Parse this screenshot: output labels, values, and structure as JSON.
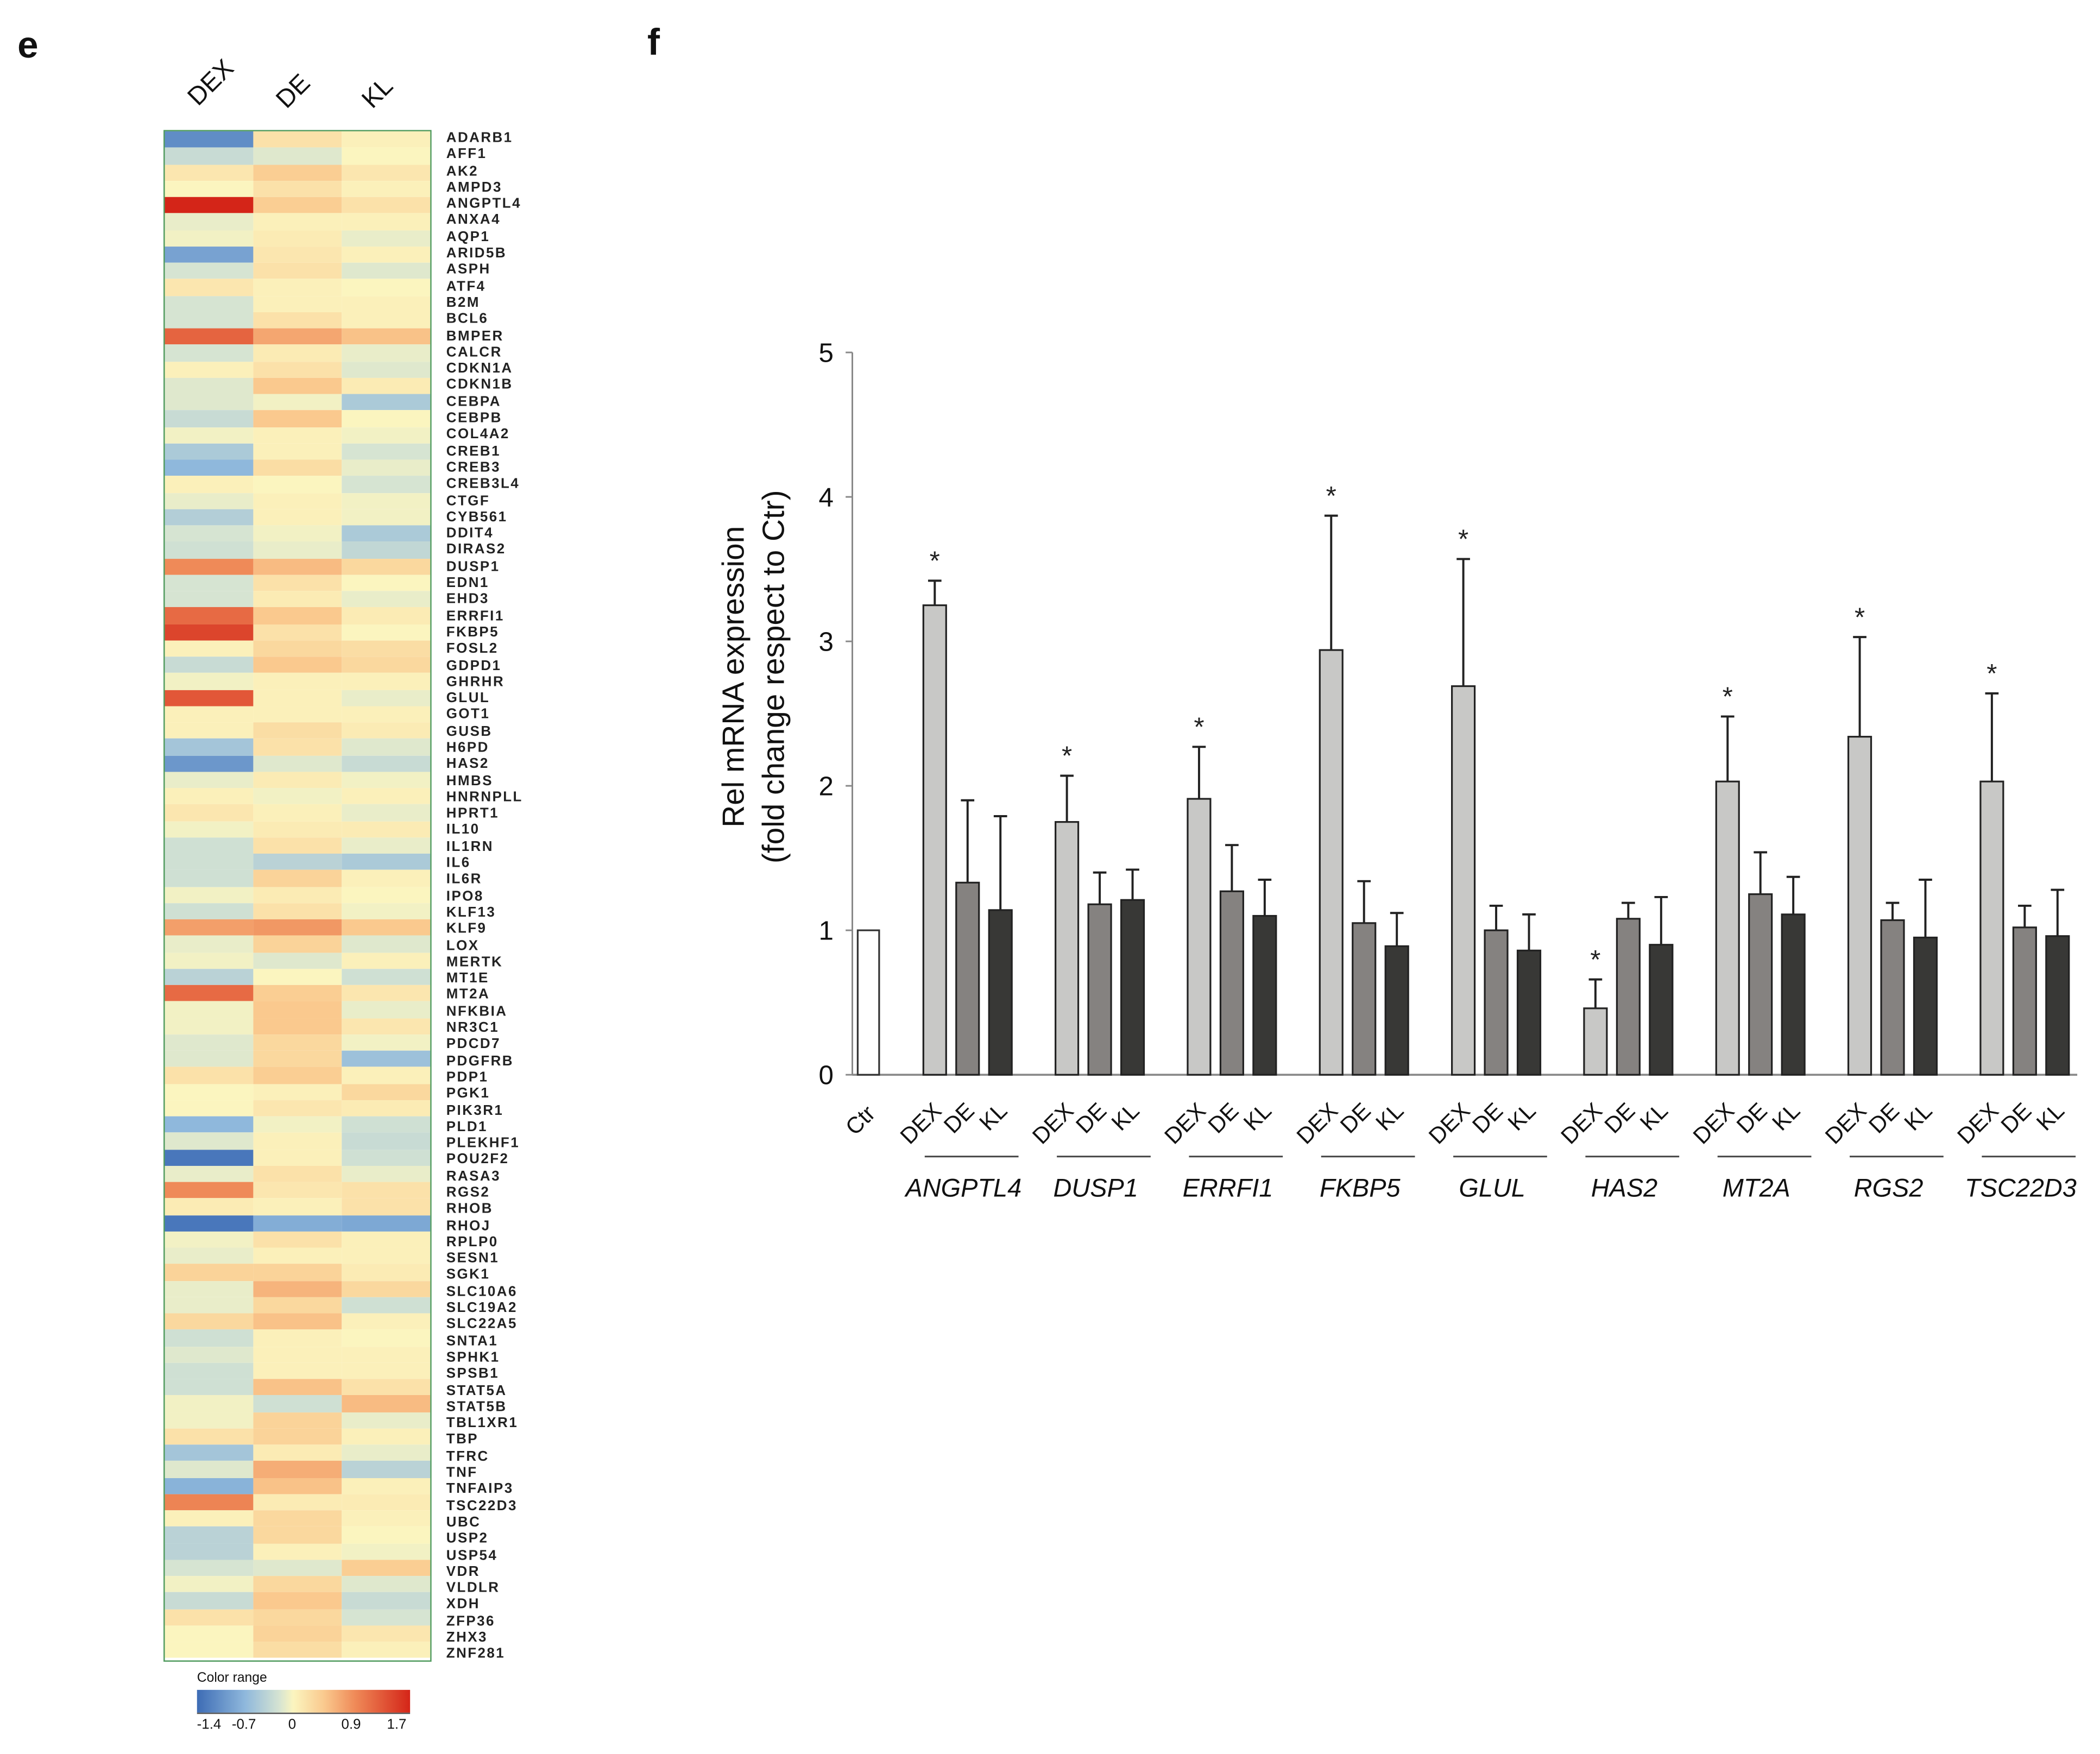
{
  "panels": {
    "left": "e",
    "right": "f"
  },
  "heatmap": {
    "columns": [
      "DEX",
      "DE",
      "KL"
    ],
    "genes": [
      "ADARB1",
      "AFF1",
      "AK2",
      "AMPD3",
      "ANGPTL4",
      "ANXA4",
      "AQP1",
      "ARID5B",
      "ASPH",
      "ATF4",
      "B2M",
      "BCL6",
      "BMPER",
      "CALCR",
      "CDKN1A",
      "CDKN1B",
      "CEBPA",
      "CEBPB",
      "COL4A2",
      "CREB1",
      "CREB3",
      "CREB3L4",
      "CTGF",
      "CYB561",
      "DDIT4",
      "DIRAS2",
      "DUSP1",
      "EDN1",
      "EHD3",
      "ERRFI1",
      "FKBP5",
      "FOSL2",
      "GDPD1",
      "GHRHR",
      "GLUL",
      "GOT1",
      "GUSB",
      "H6PD",
      "HAS2",
      "HMBS",
      "HNRNPLL",
      "HPRT1",
      "IL10",
      "IL1RN",
      "IL6",
      "IL6R",
      "IPO8",
      "KLF13",
      "KLF9",
      "LOX",
      "MERTK",
      "MT1E",
      "MT2A",
      "NFKBIA",
      "NR3C1",
      "PDCD7",
      "PDGFRB",
      "PDP1",
      "PGK1",
      "PIK3R1",
      "PLD1",
      "PLEKHF1",
      "POU2F2",
      "RASA3",
      "RGS2",
      "RHOB",
      "RHOJ",
      "RPLP0",
      "SESN1",
      "SGK1",
      "SLC10A6",
      "SLC19A2",
      "SLC22A5",
      "SNTA1",
      "SPHK1",
      "SPSB1",
      "STAT5A",
      "STAT5B",
      "TBL1XR1",
      "TBP",
      "TFRC",
      "TNF",
      "TNFAIP3",
      "TSC22D3",
      "UBC",
      "USP2",
      "USP54",
      "VDR",
      "VLDLR",
      "XDH",
      "ZFP36",
      "ZHX3",
      "ZNF281"
    ],
    "values": [
      [
        -1.1,
        0.2,
        0.05
      ],
      [
        -0.3,
        -0.15,
        0
      ],
      [
        0.15,
        0.4,
        0.15
      ],
      [
        0,
        0.2,
        0.05
      ],
      [
        1.7,
        0.4,
        0.2
      ],
      [
        -0.1,
        0.05,
        0.05
      ],
      [
        -0.05,
        0.1,
        -0.1
      ],
      [
        -0.9,
        0.15,
        0.05
      ],
      [
        -0.2,
        0.2,
        -0.15
      ],
      [
        0.15,
        0.05,
        0
      ],
      [
        -0.2,
        0.05,
        0.05
      ],
      [
        -0.2,
        0.2,
        0.05
      ],
      [
        1.2,
        0.7,
        0.5
      ],
      [
        -0.2,
        0.1,
        -0.1
      ],
      [
        0.05,
        0.2,
        -0.15
      ],
      [
        -0.15,
        0.45,
        0.1
      ],
      [
        -0.15,
        -0.05,
        -0.5
      ],
      [
        -0.3,
        0.45,
        0
      ],
      [
        -0.05,
        0.05,
        -0.05
      ],
      [
        -0.5,
        0.05,
        -0.2
      ],
      [
        -0.7,
        0.25,
        -0.1
      ],
      [
        0.05,
        0,
        -0.2
      ],
      [
        -0.1,
        0.05,
        -0.05
      ],
      [
        -0.45,
        0.05,
        -0.05
      ],
      [
        -0.2,
        -0.05,
        -0.5
      ],
      [
        -0.25,
        -0.1,
        -0.35
      ],
      [
        0.9,
        0.55,
        0.3
      ],
      [
        -0.2,
        0.2,
        0
      ],
      [
        -0.2,
        0.1,
        -0.1
      ],
      [
        1.15,
        0.45,
        0.1
      ],
      [
        1.45,
        0.2,
        0
      ],
      [
        0.05,
        0.3,
        0.25
      ],
      [
        -0.3,
        0.45,
        0.3
      ],
      [
        -0.05,
        0.05,
        0.05
      ],
      [
        1.3,
        0.05,
        -0.1
      ],
      [
        0.05,
        0.05,
        0.05
      ],
      [
        0.05,
        0.25,
        0.1
      ],
      [
        -0.55,
        0.2,
        -0.15
      ],
      [
        -1.0,
        -0.15,
        -0.3
      ],
      [
        -0.1,
        0.1,
        -0.05
      ],
      [
        0.05,
        -0.05,
        0.05
      ],
      [
        0.15,
        0.05,
        -0.1
      ],
      [
        -0.05,
        0.1,
        0.1
      ],
      [
        -0.25,
        0.2,
        -0.1
      ],
      [
        -0.25,
        -0.4,
        -0.5
      ],
      [
        -0.25,
        0.35,
        0.05
      ],
      [
        -0.05,
        0.1,
        0
      ],
      [
        -0.25,
        0.2,
        -0.05
      ],
      [
        0.75,
        0.8,
        0.45
      ],
      [
        -0.1,
        0.35,
        -0.15
      ],
      [
        -0.05,
        -0.15,
        0.05
      ],
      [
        -0.4,
        0,
        -0.25
      ],
      [
        1.15,
        0.4,
        0.15
      ],
      [
        -0.05,
        0.45,
        -0.1
      ],
      [
        -0.05,
        0.45,
        0.15
      ],
      [
        -0.15,
        0.3,
        -0.05
      ],
      [
        -0.15,
        0.3,
        -0.6
      ],
      [
        0.2,
        0.4,
        0.05
      ],
      [
        0,
        0.05,
        0.3
      ],
      [
        0,
        0.15,
        0.1
      ],
      [
        -0.7,
        -0.05,
        -0.25
      ],
      [
        -0.15,
        0.05,
        -0.3
      ],
      [
        -1.3,
        0.05,
        -0.25
      ],
      [
        -0.1,
        0.2,
        -0.1
      ],
      [
        0.9,
        0.15,
        0.2
      ],
      [
        0.1,
        0.05,
        0.2
      ],
      [
        -1.3,
        -0.8,
        -0.85
      ],
      [
        -0.05,
        0.2,
        0.05
      ],
      [
        -0.1,
        0.05,
        0.05
      ],
      [
        0.35,
        0.35,
        0.1
      ],
      [
        -0.1,
        0.6,
        0.3
      ],
      [
        -0.1,
        0.3,
        -0.25
      ],
      [
        0.3,
        0.5,
        0.05
      ],
      [
        -0.25,
        0.05,
        0
      ],
      [
        -0.15,
        0.05,
        0.05
      ],
      [
        -0.25,
        0.05,
        0.05
      ],
      [
        -0.25,
        0.5,
        0.2
      ],
      [
        -0.05,
        -0.25,
        0.55
      ],
      [
        -0.05,
        0.35,
        -0.1
      ],
      [
        0.2,
        0.35,
        0.05
      ],
      [
        -0.55,
        0.1,
        -0.1
      ],
      [
        -0.15,
        0.65,
        -0.4
      ],
      [
        -0.75,
        0.5,
        0.05
      ],
      [
        0.95,
        0.1,
        0.1
      ],
      [
        0.05,
        0.3,
        0.05
      ],
      [
        -0.4,
        0.3,
        0
      ],
      [
        -0.4,
        0.05,
        -0.05
      ],
      [
        -0.2,
        -0.15,
        0.4
      ],
      [
        -0.05,
        0.3,
        -0.15
      ],
      [
        -0.3,
        0.45,
        -0.3
      ],
      [
        0.2,
        0.3,
        -0.2
      ],
      [
        0,
        0.35,
        0.15
      ],
      [
        0,
        0.25,
        0.05
      ]
    ],
    "color_range": {
      "title": "Color range",
      "ticks": [
        "-1.4",
        "-0.7",
        "0",
        "0.9",
        "1.7"
      ],
      "stops": [
        [
          -1.4,
          "#3d6cb5"
        ],
        [
          -0.7,
          "#8fb8dc"
        ],
        [
          -0.2,
          "#d6e4d2"
        ],
        [
          0,
          "#fbf5bf"
        ],
        [
          0.45,
          "#fac98e"
        ],
        [
          0.9,
          "#ef8a58"
        ],
        [
          1.7,
          "#d42518"
        ]
      ]
    }
  },
  "chart_data": {
    "type": "bar",
    "ylabel": [
      "Rel mRNA expression",
      "(fold change respect to Ctr)"
    ],
    "ylim": [
      0,
      5
    ],
    "yticks": [
      "0",
      "1",
      "2",
      "3",
      "4",
      "5"
    ],
    "control": {
      "label": "Ctr",
      "value": 1.0,
      "color": "#ffffff"
    },
    "conditions": [
      "DEX",
      "DE",
      "KL"
    ],
    "condition_colors": [
      "#c8c8c6",
      "#858280",
      "#383836"
    ],
    "groups": [
      {
        "gene": "ANGPTL4",
        "values": [
          3.25,
          1.33,
          1.14
        ],
        "errors": [
          0.17,
          0.57,
          0.65
        ],
        "significant": [
          true,
          false,
          false
        ]
      },
      {
        "gene": "DUSP1",
        "values": [
          1.75,
          1.18,
          1.21
        ],
        "errors": [
          0.32,
          0.22,
          0.21
        ],
        "significant": [
          true,
          false,
          false
        ]
      },
      {
        "gene": "ERRFI1",
        "values": [
          1.91,
          1.27,
          1.1
        ],
        "errors": [
          0.36,
          0.32,
          0.25
        ],
        "significant": [
          true,
          false,
          false
        ]
      },
      {
        "gene": "FKBP5",
        "values": [
          2.94,
          1.05,
          0.89
        ],
        "errors": [
          0.93,
          0.29,
          0.23
        ],
        "significant": [
          true,
          false,
          false
        ]
      },
      {
        "gene": "GLUL",
        "values": [
          2.69,
          1.0,
          0.86
        ],
        "errors": [
          0.88,
          0.17,
          0.25
        ],
        "significant": [
          true,
          false,
          false
        ]
      },
      {
        "gene": "HAS2",
        "values": [
          0.46,
          1.08,
          0.9
        ],
        "errors": [
          0.2,
          0.11,
          0.33
        ],
        "significant": [
          true,
          false,
          false
        ]
      },
      {
        "gene": "MT2A",
        "values": [
          2.03,
          1.25,
          1.11
        ],
        "errors": [
          0.45,
          0.29,
          0.26
        ],
        "significant": [
          true,
          false,
          false
        ]
      },
      {
        "gene": "RGS2",
        "values": [
          2.34,
          1.07,
          0.95
        ],
        "errors": [
          0.69,
          0.12,
          0.4
        ],
        "significant": [
          true,
          false,
          false
        ]
      },
      {
        "gene": "TSC22D3",
        "values": [
          2.03,
          1.02,
          0.96
        ],
        "errors": [
          0.61,
          0.15,
          0.32
        ],
        "significant": [
          true,
          false,
          false
        ]
      }
    ],
    "significance_marker": "*"
  }
}
